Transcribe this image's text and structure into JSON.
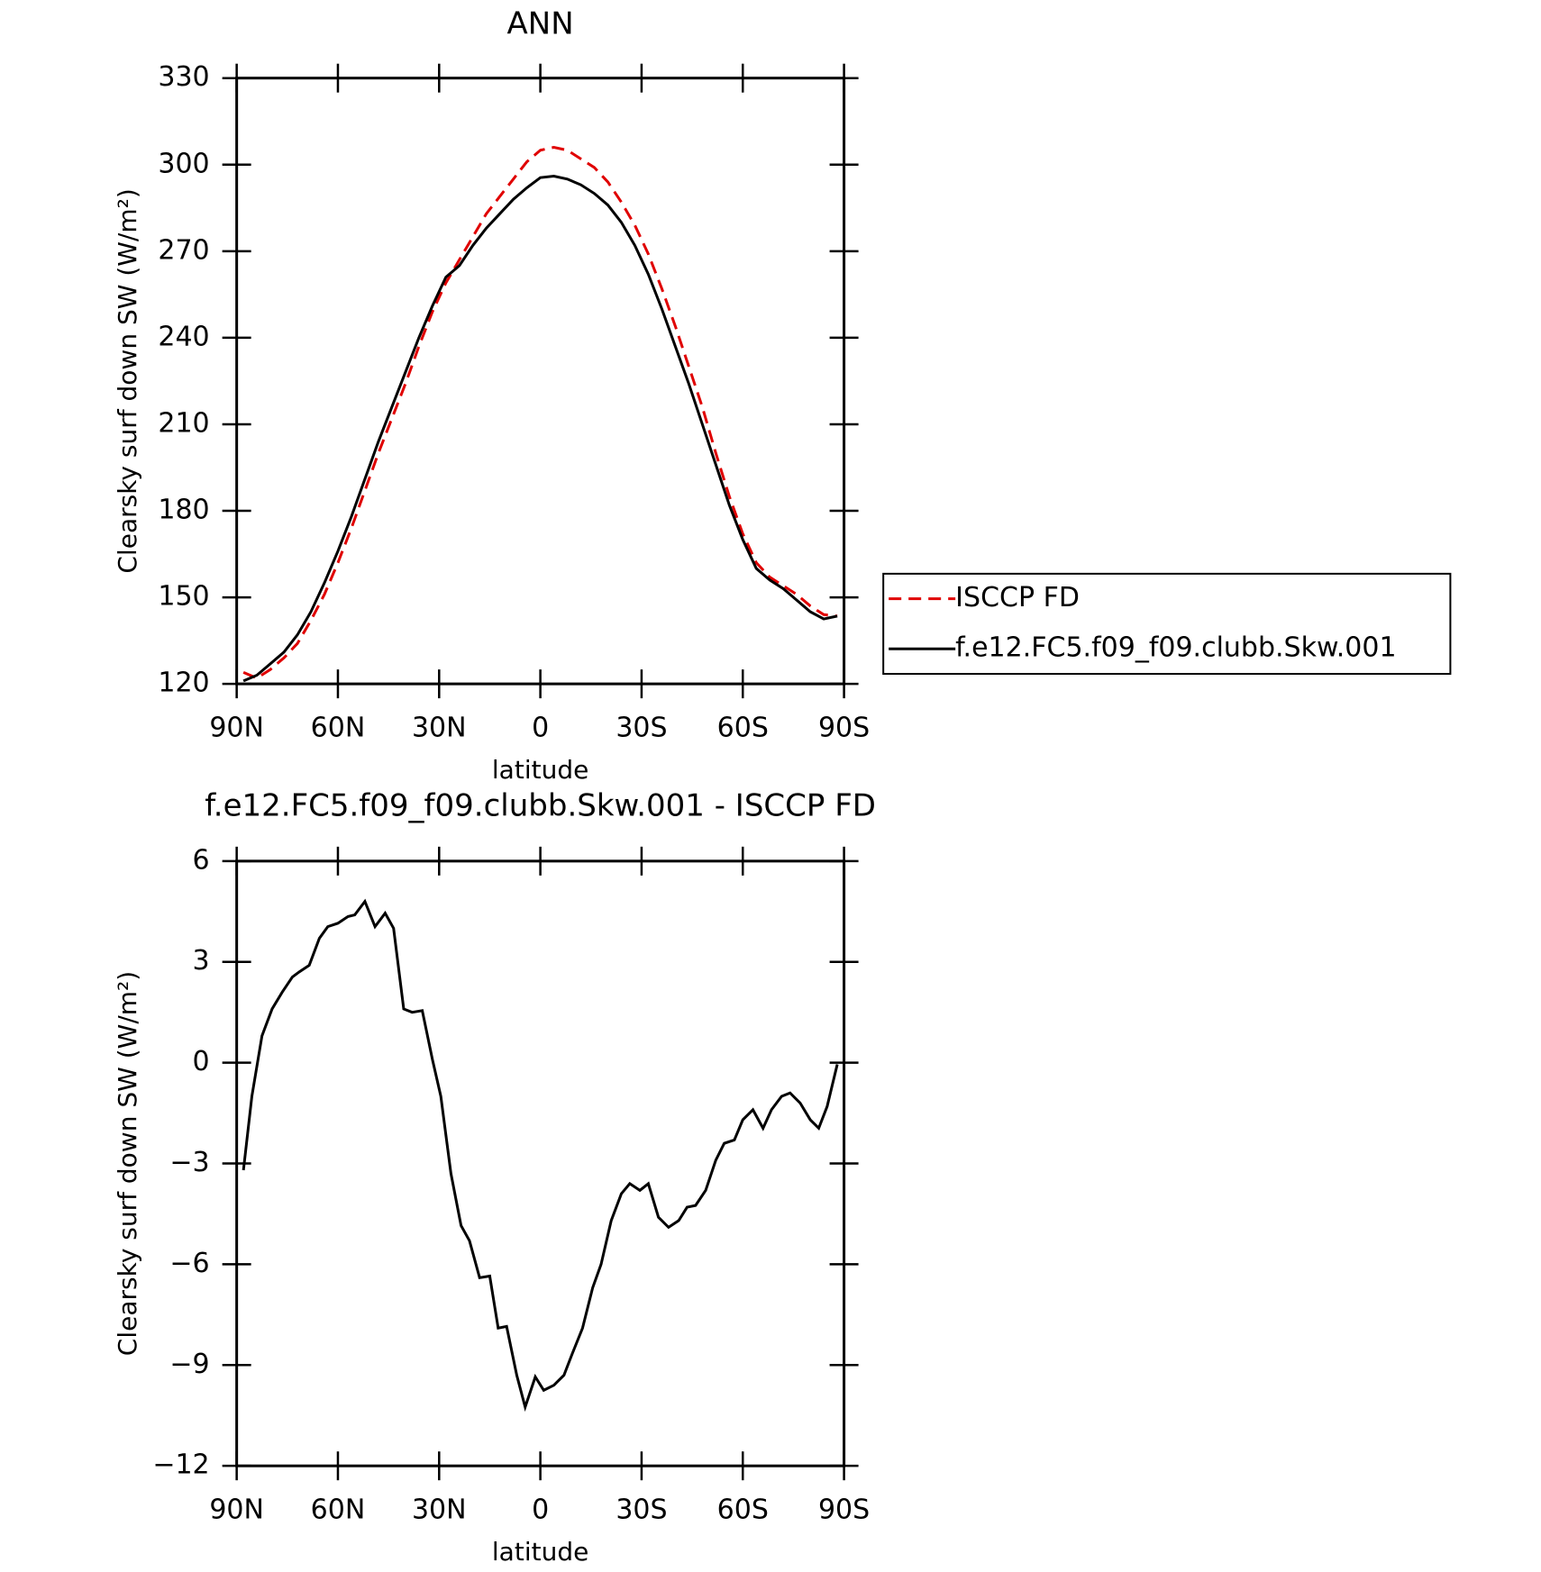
{
  "chart_data": [
    {
      "type": "line",
      "title": "ANN",
      "xlabel": "latitude",
      "ylabel": "Clearsky surf down SW (W/m²)",
      "xlim": [
        90,
        -90
      ],
      "xticks": [
        {
          "value": 90,
          "label": "90N"
        },
        {
          "value": 60,
          "label": "60N"
        },
        {
          "value": 30,
          "label": "30N"
        },
        0,
        {
          "value": -30,
          "label": "30S"
        },
        {
          "value": -60,
          "label": "60S"
        },
        {
          "value": -90,
          "label": "90S"
        }
      ],
      "ylim": [
        120,
        330
      ],
      "yticks": [
        120,
        150,
        180,
        210,
        240,
        270,
        300,
        330
      ],
      "x": [
        88,
        84,
        80,
        76,
        72,
        68,
        64,
        60,
        56,
        52,
        48,
        44,
        40,
        36,
        32,
        28,
        24,
        20,
        16,
        12,
        8,
        4,
        0,
        -4,
        -8,
        -12,
        -16,
        -20,
        -24,
        -28,
        -32,
        -36,
        -40,
        -44,
        -48,
        -52,
        -56,
        -60,
        -64,
        -68,
        -72,
        -76,
        -80,
        -84,
        -88
      ],
      "series": [
        {
          "name": "ISCCP FD",
          "color": "#e00000",
          "dashed": true,
          "values": [
            124,
            122,
            125,
            129,
            134,
            142,
            151,
            162,
            174,
            187,
            200,
            212,
            224,
            237,
            249,
            259,
            267,
            275,
            283,
            289,
            295,
            301,
            305,
            306,
            305,
            302,
            299,
            294,
            287,
            279,
            269,
            257,
            244,
            230,
            216,
            200,
            185,
            172,
            162,
            157,
            154,
            151,
            147,
            144,
            143.5
          ]
        },
        {
          "name": "f.e12.FC5.f09_f09.clubb.Skw.001",
          "color": "#000000",
          "dashed": false,
          "values": [
            121,
            123,
            127,
            131,
            137,
            145,
            155,
            166,
            178,
            191,
            204,
            216,
            228,
            240,
            251,
            261,
            265,
            272,
            278,
            283,
            288,
            292,
            295.5,
            296,
            295,
            293,
            290,
            286,
            280,
            272,
            262,
            250,
            237,
            224,
            210,
            196,
            182,
            170,
            160,
            156,
            153,
            149,
            145,
            142.5,
            143.5
          ]
        }
      ]
    },
    {
      "type": "line",
      "title": "f.e12.FC5.f09_f09.clubb.Skw.001 - ISCCP FD",
      "xlabel": "latitude",
      "ylabel": "Clearsky surf down SW (W/m²)",
      "xlim": [
        90,
        -90
      ],
      "xticks": [
        {
          "value": 90,
          "label": "90N"
        },
        {
          "value": 60,
          "label": "60N"
        },
        {
          "value": 30,
          "label": "30N"
        },
        0,
        {
          "value": -30,
          "label": "30S"
        },
        {
          "value": -60,
          "label": "60S"
        },
        {
          "value": -90,
          "label": "90S"
        }
      ],
      "ylim": [
        -12,
        6
      ],
      "yticks": [
        {
          "value": -12,
          "label": "−12"
        },
        {
          "value": -9,
          "label": "−9"
        },
        {
          "value": -6,
          "label": "−6"
        },
        {
          "value": -3,
          "label": "−3"
        },
        0,
        3,
        6
      ],
      "x": [
        88,
        85.5,
        82.5,
        79.5,
        76.5,
        73.5,
        71.5,
        68.5,
        65.5,
        63,
        60,
        57,
        55,
        52,
        49,
        46,
        43.5,
        40.5,
        38,
        35,
        32,
        29.5,
        26.5,
        23.5,
        21,
        18,
        15,
        12.5,
        10,
        7,
        4.5,
        1.5,
        -1,
        -4,
        -7,
        -9.5,
        -12.5,
        -15.5,
        -18,
        -21,
        -24,
        -26.5,
        -29.5,
        -32,
        -35,
        -38,
        -41,
        -43.5,
        -46,
        -49,
        -52,
        -54.5,
        -57.5,
        -60,
        -63,
        -66,
        -68.5,
        -71.5,
        -74,
        -77,
        -80,
        -82.5,
        -85,
        -88
      ],
      "series": [
        {
          "name": null,
          "color": "#000000",
          "dashed": false,
          "values": [
            -3.2,
            -1,
            0.8,
            1.6,
            2.1,
            2.55,
            2.7,
            2.9,
            3.7,
            4.05,
            4.15,
            4.35,
            4.4,
            4.8,
            4.05,
            4.45,
            4.0,
            1.6,
            1.5,
            1.55,
            0.1,
            -1.0,
            -3.3,
            -4.85,
            -5.3,
            -6.4,
            -6.35,
            -7.9,
            -7.85,
            -9.3,
            -10.25,
            -9.35,
            -9.75,
            -9.6,
            -9.3,
            -8.65,
            -7.9,
            -6.7,
            -6.0,
            -4.7,
            -3.9,
            -3.6,
            -3.8,
            -3.6,
            -4.6,
            -4.9,
            -4.7,
            -4.3,
            -4.25,
            -3.8,
            -2.9,
            -2.4,
            -2.3,
            -1.7,
            -1.4,
            -1.95,
            -1.4,
            -1.0,
            -0.9,
            -1.2,
            -1.7,
            -1.95,
            -1.3,
            -0.05
          ]
        }
      ]
    }
  ]
}
